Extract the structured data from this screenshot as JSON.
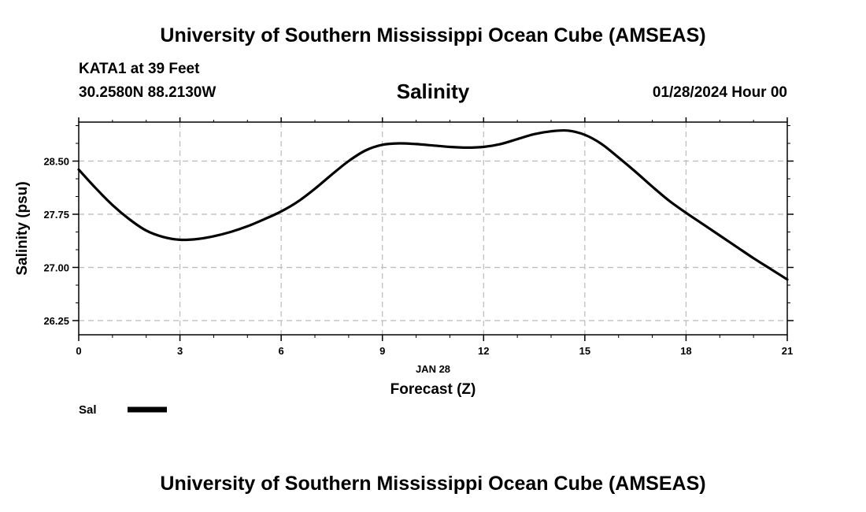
{
  "header": {
    "title": "University of Southern Mississippi Ocean Cube (AMSEAS)",
    "station": "KATA1 at 39 Feet",
    "coords": "30.2580N  88.2130W",
    "datetime": "01/28/2024 Hour 00"
  },
  "footer": {
    "title": "University of Southern Mississippi Ocean Cube (AMSEAS)"
  },
  "chart_data": {
    "type": "line",
    "title": "Salinity",
    "xlabel": "Forecast (Z)",
    "xsublabel": "JAN 28",
    "ylabel": "Salinity (psu)",
    "xlim": [
      0,
      21
    ],
    "ylim": [
      26.05,
      29.05
    ],
    "xticks": [
      0,
      3,
      6,
      9,
      12,
      15,
      18,
      21
    ],
    "xtick_labels": [
      "0",
      "3",
      "6",
      "9",
      "12",
      "15",
      "18",
      "21"
    ],
    "yticks": [
      26.25,
      27.0,
      27.75,
      28.5
    ],
    "ytick_labels": [
      "26.25",
      "27.00",
      "27.75",
      "28.50"
    ],
    "grid": true,
    "line_color": "#000000",
    "grid_color": "#bbbbbb",
    "series": [
      {
        "name": "Sal",
        "x": [
          0,
          0.5,
          1,
          1.5,
          2,
          2.5,
          3,
          3.5,
          4,
          4.5,
          5,
          5.5,
          6,
          6.5,
          7,
          7.5,
          8,
          8.5,
          9,
          9.5,
          10,
          10.5,
          11,
          11.5,
          12,
          12.5,
          13,
          13.5,
          14,
          14.5,
          15,
          15.5,
          16,
          16.5,
          17,
          17.5,
          18,
          18.5,
          19,
          19.5,
          20,
          20.5,
          21
        ],
        "values": [
          28.38,
          28.12,
          27.88,
          27.68,
          27.52,
          27.43,
          27.39,
          27.4,
          27.44,
          27.5,
          27.58,
          27.68,
          27.79,
          27.93,
          28.11,
          28.31,
          28.5,
          28.65,
          28.73,
          28.75,
          28.74,
          28.72,
          28.7,
          28.69,
          28.7,
          28.74,
          28.81,
          28.88,
          28.92,
          28.93,
          28.87,
          28.74,
          28.55,
          28.35,
          28.14,
          27.94,
          27.77,
          27.61,
          27.45,
          27.29,
          27.13,
          26.98,
          26.83
        ]
      }
    ]
  }
}
